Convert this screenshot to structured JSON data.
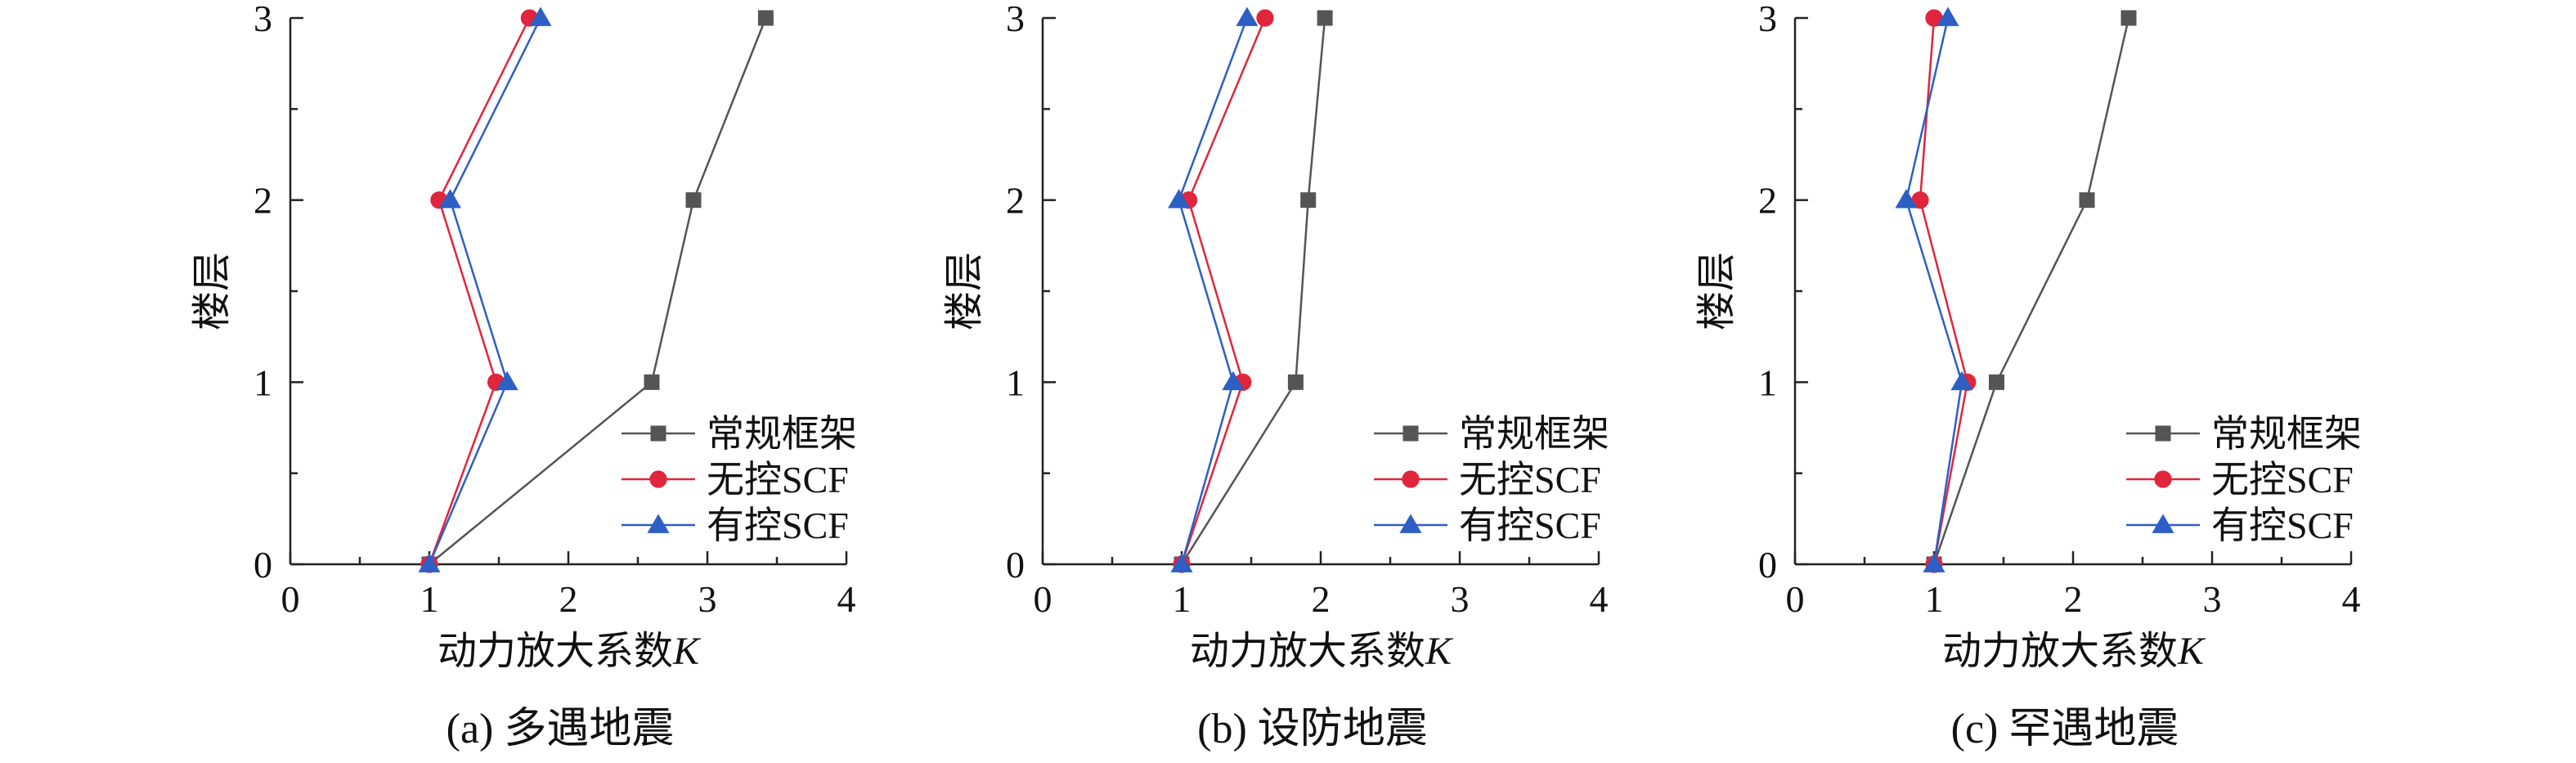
{
  "chart_data": [
    {
      "type": "line",
      "caption": "(a) 多遇地震",
      "xlabel": "动力放大系数",
      "xlabel_var": "K",
      "ylabel": "楼层",
      "xlim": [
        0,
        4
      ],
      "ylim": [
        0,
        3
      ],
      "xticks": [
        "0",
        "1",
        "2",
        "3",
        "4"
      ],
      "yticks": [
        "0",
        "1",
        "2",
        "3"
      ],
      "legend_position": "bottom-right",
      "series": [
        {
          "name": "常规框架",
          "marker": "square",
          "color": "#555555",
          "x": [
            1.0,
            2.6,
            2.9,
            3.42
          ],
          "y": [
            0,
            1,
            2,
            3
          ]
        },
        {
          "name": "无控SCF",
          "marker": "circle",
          "color": "#e0263c",
          "x": [
            1.0,
            1.48,
            1.07,
            1.72
          ],
          "y": [
            0,
            1,
            2,
            3
          ]
        },
        {
          "name": "有控SCF",
          "marker": "triangle",
          "color": "#2d5fc4",
          "x": [
            1.0,
            1.56,
            1.15,
            1.8
          ],
          "y": [
            0,
            1,
            2,
            3
          ]
        }
      ]
    },
    {
      "type": "line",
      "caption": "(b) 设防地震",
      "xlabel": "动力放大系数",
      "xlabel_var": "K",
      "ylabel": "楼层",
      "xlim": [
        0,
        4
      ],
      "ylim": [
        0,
        3
      ],
      "xticks": [
        "0",
        "1",
        "2",
        "3",
        "4"
      ],
      "yticks": [
        "0",
        "1",
        "2",
        "3"
      ],
      "legend_position": "bottom-right",
      "series": [
        {
          "name": "常规框架",
          "marker": "square",
          "color": "#555555",
          "x": [
            1.0,
            1.82,
            1.91,
            2.03
          ],
          "y": [
            0,
            1,
            2,
            3
          ]
        },
        {
          "name": "无控SCF",
          "marker": "circle",
          "color": "#e0263c",
          "x": [
            1.0,
            1.44,
            1.05,
            1.6
          ],
          "y": [
            0,
            1,
            2,
            3
          ]
        },
        {
          "name": "有控SCF",
          "marker": "triangle",
          "color": "#2d5fc4",
          "x": [
            1.0,
            1.37,
            0.98,
            1.47
          ],
          "y": [
            0,
            1,
            2,
            3
          ]
        }
      ]
    },
    {
      "type": "line",
      "caption": "(c) 罕遇地震",
      "xlabel": "动力放大系数",
      "xlabel_var": "K",
      "ylabel": "楼层",
      "xlim": [
        0,
        4
      ],
      "ylim": [
        0,
        3
      ],
      "xticks": [
        "0",
        "1",
        "2",
        "3",
        "4"
      ],
      "yticks": [
        "0",
        "1",
        "2",
        "3"
      ],
      "legend_position": "bottom-right",
      "series": [
        {
          "name": "常规框架",
          "marker": "square",
          "color": "#555555",
          "x": [
            1.0,
            1.45,
            2.1,
            2.4
          ],
          "y": [
            0,
            1,
            2,
            3
          ]
        },
        {
          "name": "无控SCF",
          "marker": "circle",
          "color": "#e0263c",
          "x": [
            1.0,
            1.24,
            0.9,
            1.0
          ],
          "y": [
            0,
            1,
            2,
            3
          ]
        },
        {
          "name": "有控SCF",
          "marker": "triangle",
          "color": "#2d5fc4",
          "x": [
            1.0,
            1.2,
            0.8,
            1.1
          ],
          "y": [
            0,
            1,
            2,
            3
          ]
        }
      ]
    }
  ]
}
